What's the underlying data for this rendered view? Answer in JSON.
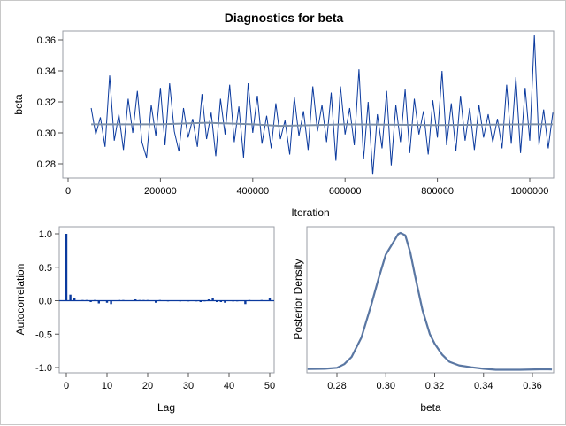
{
  "title": "Diagnostics for beta",
  "colors": {
    "trace": "#0b3a9e",
    "smooth": "#7b8fa8",
    "frame": "#9a9ea6",
    "density": "#5a77a3"
  },
  "chart_data": [
    {
      "type": "line",
      "name": "trace",
      "xlabel": "Iteration",
      "ylabel": "beta",
      "xlim": [
        0,
        1050000
      ],
      "ylim": [
        0.27,
        0.366
      ],
      "xticks": [
        "0",
        "200000",
        "400000",
        "600000",
        "800000",
        "1000000"
      ],
      "yticks": [
        "0.28",
        "0.30",
        "0.32",
        "0.34",
        "0.36"
      ],
      "x_start": 50000,
      "x_step": 10000,
      "values": [
        0.316,
        0.299,
        0.31,
        0.291,
        0.337,
        0.295,
        0.312,
        0.289,
        0.322,
        0.3,
        0.327,
        0.294,
        0.284,
        0.318,
        0.298,
        0.329,
        0.292,
        0.332,
        0.301,
        0.288,
        0.316,
        0.297,
        0.309,
        0.291,
        0.325,
        0.296,
        0.313,
        0.285,
        0.322,
        0.299,
        0.331,
        0.294,
        0.317,
        0.284,
        0.332,
        0.3,
        0.324,
        0.293,
        0.311,
        0.29,
        0.319,
        0.296,
        0.308,
        0.286,
        0.323,
        0.298,
        0.314,
        0.289,
        0.33,
        0.301,
        0.318,
        0.294,
        0.326,
        0.282,
        0.33,
        0.299,
        0.316,
        0.292,
        0.341,
        0.283,
        0.32,
        0.273,
        0.312,
        0.29,
        0.327,
        0.279,
        0.318,
        0.294,
        0.328,
        0.287,
        0.322,
        0.299,
        0.314,
        0.286,
        0.321,
        0.297,
        0.34,
        0.292,
        0.319,
        0.288,
        0.324,
        0.295,
        0.316,
        0.289,
        0.318,
        0.297,
        0.312,
        0.294,
        0.309,
        0.29,
        0.331,
        0.293,
        0.336,
        0.287,
        0.329,
        0.295,
        0.363,
        0.292,
        0.315,
        0.29,
        0.313
      ],
      "smooth": {
        "x": [
          50000,
          200000,
          300000,
          400000,
          460000,
          600000,
          800000,
          1000000,
          1050000
        ],
        "y": [
          0.3055,
          0.3055,
          0.3065,
          0.3055,
          0.3045,
          0.3055,
          0.305,
          0.3055,
          0.3055
        ]
      }
    },
    {
      "type": "bar",
      "name": "autocorrelation",
      "xlabel": "Lag",
      "ylabel": "Autocorrelation",
      "xlim": [
        0,
        51
      ],
      "ylim": [
        -1.05,
        1.05
      ],
      "xticks": [
        "0",
        "10",
        "20",
        "30",
        "40",
        "50"
      ],
      "yticks": [
        "-1.0",
        "-0.5",
        "0.0",
        "0.5",
        "1.0"
      ],
      "values": [
        1.0,
        0.09,
        0.04,
        0,
        0.01,
        0.01,
        -0.02,
        0.01,
        -0.04,
        0,
        -0.03,
        -0.05,
        0,
        0.01,
        0.01,
        0,
        0,
        0.02,
        0.01,
        0.01,
        0.01,
        0,
        -0.03,
        0.01,
        0,
        -0.01,
        0,
        0,
        -0.01,
        0,
        -0.01,
        0,
        -0.01,
        -0.02,
        -0.01,
        0.02,
        0.04,
        -0.02,
        -0.02,
        -0.03,
        0,
        -0.01,
        -0.01,
        0,
        -0.05,
        0.01,
        0,
        0,
        0.01,
        0,
        0.04
      ]
    },
    {
      "type": "line",
      "name": "density",
      "xlabel": "beta",
      "ylabel": "Posterior Density",
      "xlim": [
        0.2675,
        0.3685
      ],
      "xticks": [
        "0.28",
        "0.30",
        "0.32",
        "0.34",
        "0.36"
      ],
      "x": [
        0.268,
        0.275,
        0.28,
        0.283,
        0.286,
        0.29,
        0.294,
        0.297,
        0.3,
        0.303,
        0.305,
        0.306,
        0.308,
        0.31,
        0.312,
        0.315,
        0.318,
        0.32,
        0.323,
        0.326,
        0.33,
        0.335,
        0.34,
        0.345,
        0.355,
        0.365,
        0.368
      ],
      "y": [
        0.5,
        0.6,
        1.0,
        2.5,
        5.5,
        13.5,
        27,
        38,
        48,
        53,
        56.5,
        57,
        56,
        49,
        39,
        25,
        15,
        11,
        6.5,
        3.5,
        2,
        1.2,
        0.6,
        0.2,
        0.2,
        0.4,
        0.3
      ]
    }
  ]
}
